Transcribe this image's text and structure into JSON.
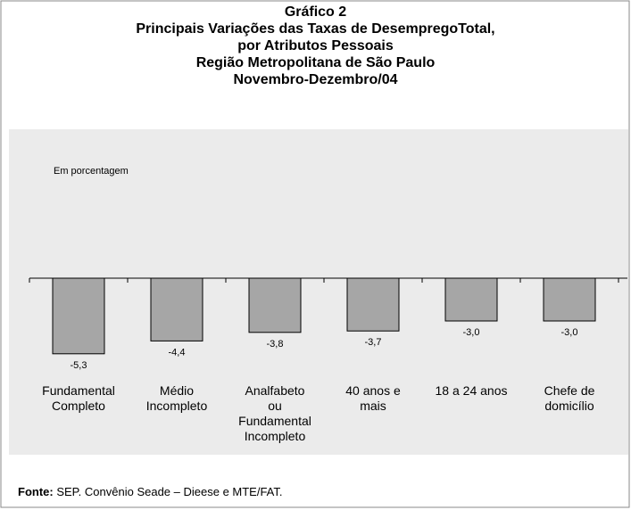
{
  "chart_data": {
    "type": "bar",
    "title": "Gráfico 2\nPrincipais Variações das Taxas de DesempregoTotal,\npor Atributos Pessoais\nRegião Metropolitana de São Paulo\nNovembro-Dezembro/04",
    "subtitle": "Em porcentagem",
    "categories": [
      "Fundamental\nCompleto",
      "Médio\nIncompleto",
      "Analfabeto\nou\nFundamental\nIncompleto",
      "40 anos e\nmais",
      "18 a 24 anos",
      "Chefe de\ndomicílio"
    ],
    "values": [
      -5.3,
      -4.4,
      -3.8,
      -3.7,
      -3.0,
      -3.0
    ],
    "value_labels": [
      "-5,3",
      "-4,4",
      "-3,8",
      "-3,7",
      "-3,0",
      "-3,0"
    ],
    "color": "#a6a6a6",
    "ylim": [
      -6,
      0
    ],
    "source_label": "Fonte:",
    "source": "SEP. Convênio Seade – Dieese e MTE/FAT."
  }
}
